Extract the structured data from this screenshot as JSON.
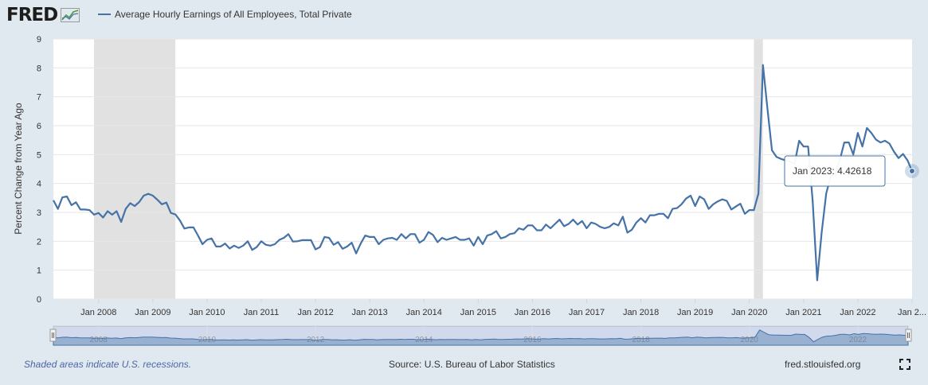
{
  "header": {
    "logo_text": "FRED",
    "series_title": "Average Hourly Earnings of All Employees, Total Private",
    "series_color": "#4572a7"
  },
  "tooltip": {
    "label": "Jan 2023:",
    "value": "4.42618"
  },
  "footer": {
    "recession_note": "Shaded areas indicate U.S. recessions.",
    "source": "Source: U.S. Bureau of Labor Statistics",
    "site": "fred.stlouisfed.org",
    "fullscreen_icon": "fullscreen-icon"
  },
  "navigator": {
    "labels": [
      "2008",
      "2010",
      "2012",
      "2014",
      "2016",
      "2018",
      "2020",
      "2022"
    ],
    "handle_left_icon": "drag-handle-icon",
    "handle_right_icon": "drag-handle-icon"
  },
  "chart_data": {
    "type": "line",
    "title": "Average Hourly Earnings of All Employees, Total Private",
    "xlabel": "",
    "ylabel": "Percent Change from Year Ago",
    "ylim": [
      0,
      9
    ],
    "xlim": [
      "2007-03",
      "2023-01"
    ],
    "yticks": [
      0,
      1,
      2,
      3,
      4,
      5,
      6,
      7,
      8,
      9
    ],
    "xtick_labels": [
      "Jan 2008",
      "Jan 2009",
      "Jan 2010",
      "Jan 2011",
      "Jan 2012",
      "Jan 2013",
      "Jan 2014",
      "Jan 2015",
      "Jan 2016",
      "Jan 2017",
      "Jan 2018",
      "Jan 2019",
      "Jan 2020",
      "Jan 2021",
      "Jan 2022",
      "Jan 2..."
    ],
    "recessions": [
      [
        "2007-12",
        "2009-06"
      ],
      [
        "2020-02",
        "2020-04"
      ]
    ],
    "grid": true,
    "series": [
      {
        "name": "Average Hourly Earnings of All Employees, Total Private",
        "color": "#4572a7",
        "start": "2007-03",
        "frequency": "monthly",
        "values": [
          3.42,
          3.12,
          3.52,
          3.55,
          3.25,
          3.35,
          3.1,
          3.1,
          3.08,
          2.92,
          2.98,
          2.82,
          3.04,
          2.92,
          3.04,
          2.67,
          3.12,
          3.32,
          3.22,
          3.36,
          3.58,
          3.64,
          3.58,
          3.44,
          3.28,
          3.34,
          2.98,
          2.93,
          2.72,
          2.44,
          2.48,
          2.48,
          2.2,
          1.9,
          2.05,
          2.1,
          1.82,
          1.82,
          1.92,
          1.75,
          1.85,
          1.77,
          1.85,
          2.0,
          1.7,
          1.8,
          2.0,
          1.88,
          1.85,
          1.9,
          2.05,
          2.12,
          2.25,
          1.99,
          2.0,
          2.04,
          2.04,
          2.04,
          1.72,
          1.8,
          2.15,
          2.12,
          1.88,
          1.97,
          1.74,
          1.82,
          1.95,
          1.58,
          1.92,
          2.2,
          2.15,
          2.15,
          1.9,
          2.05,
          2.1,
          2.12,
          2.05,
          2.25,
          2.1,
          2.25,
          2.25,
          1.95,
          2.05,
          2.32,
          2.22,
          1.97,
          2.12,
          2.05,
          2.1,
          2.15,
          2.05,
          2.05,
          2.1,
          1.85,
          2.15,
          1.9,
          2.2,
          2.25,
          2.35,
          2.1,
          2.15,
          2.25,
          2.28,
          2.45,
          2.4,
          2.55,
          2.55,
          2.38,
          2.38,
          2.58,
          2.45,
          2.6,
          2.75,
          2.52,
          2.6,
          2.75,
          2.58,
          2.7,
          2.45,
          2.65,
          2.6,
          2.5,
          2.45,
          2.5,
          2.62,
          2.55,
          2.85,
          2.3,
          2.4,
          2.65,
          2.8,
          2.65,
          2.9,
          2.9,
          2.95,
          2.95,
          2.8,
          3.12,
          3.15,
          3.28,
          3.48,
          3.58,
          3.22,
          3.55,
          3.45,
          3.12,
          3.28,
          3.38,
          3.45,
          3.4,
          3.1,
          3.2,
          3.3,
          2.95,
          3.08,
          3.08,
          3.65,
          8.1,
          6.6,
          5.15,
          4.92,
          4.85,
          4.8,
          4.75,
          4.68,
          5.48,
          5.28,
          5.28,
          3.4,
          0.65,
          2.3,
          3.65,
          4.25,
          4.35,
          4.8,
          5.42,
          5.42,
          5.0,
          5.75,
          5.28,
          5.92,
          5.75,
          5.52,
          5.42,
          5.48,
          5.38,
          5.1,
          4.88,
          5.02,
          4.8,
          4.43
        ]
      }
    ]
  }
}
